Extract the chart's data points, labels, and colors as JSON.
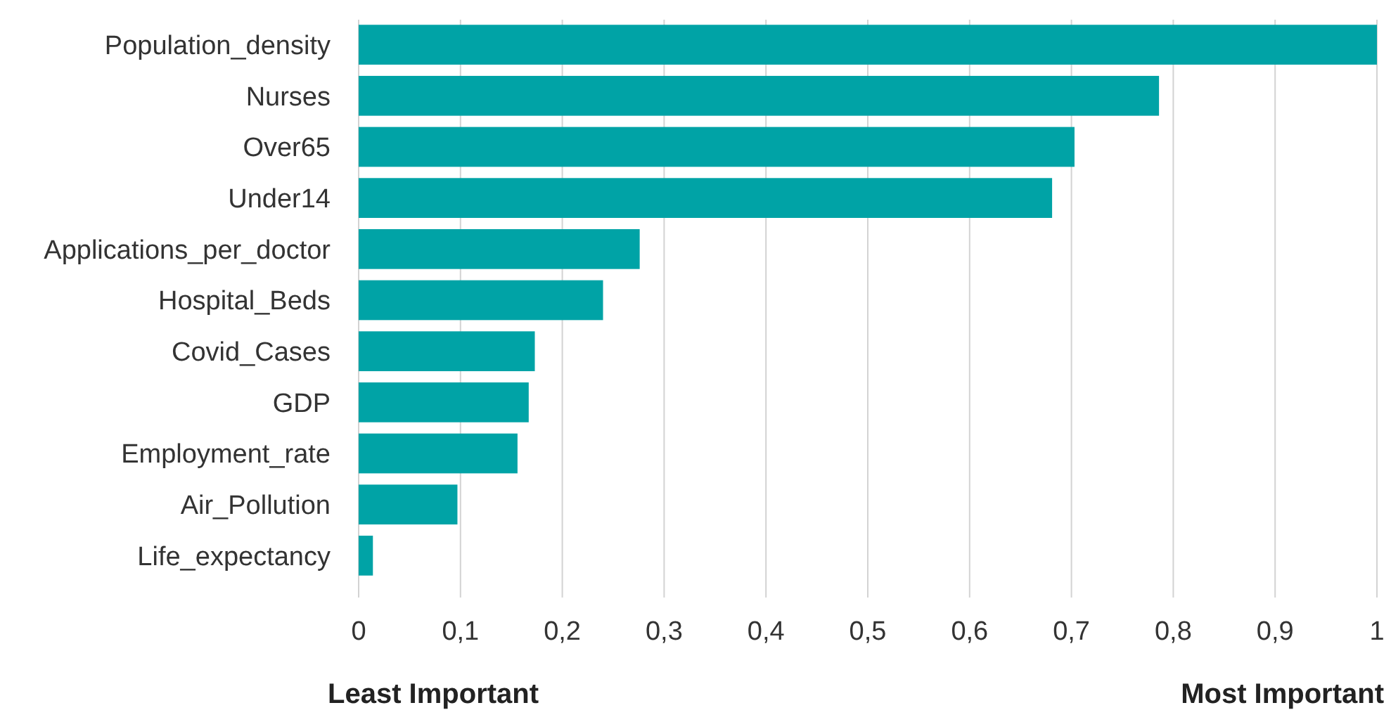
{
  "chart_data": {
    "type": "bar",
    "orientation": "horizontal",
    "categories": [
      "Population_density",
      "Nurses",
      "Over65",
      "Under14",
      "Applications_per_doctor",
      "Hospital_Beds",
      "Covid_Cases",
      "GDP",
      "Employment_rate",
      "Air_Pollution",
      "Life_expectancy"
    ],
    "values": [
      1.0,
      0.786,
      0.703,
      0.681,
      0.276,
      0.24,
      0.173,
      0.167,
      0.156,
      0.097,
      0.014
    ],
    "color": "#00a3a6",
    "xlim": [
      0,
      1
    ],
    "xticks": [
      0,
      {
        "value": 0.1,
        "label": "0,1"
      },
      {
        "value": 0.2,
        "label": "0,2"
      },
      {
        "value": 0.3,
        "label": "0,3"
      },
      {
        "value": 0.4,
        "label": "0,4"
      },
      {
        "value": 0.5,
        "label": "0,5"
      },
      {
        "value": 0.6,
        "label": "0,6"
      },
      {
        "value": 0.7,
        "label": "0,7"
      },
      {
        "value": 0.8,
        "label": "0,8"
      },
      {
        "value": 0.9,
        "label": "0,9"
      },
      1
    ],
    "grid": "x",
    "annotations": [
      "Least Important",
      "Most Important"
    ]
  }
}
